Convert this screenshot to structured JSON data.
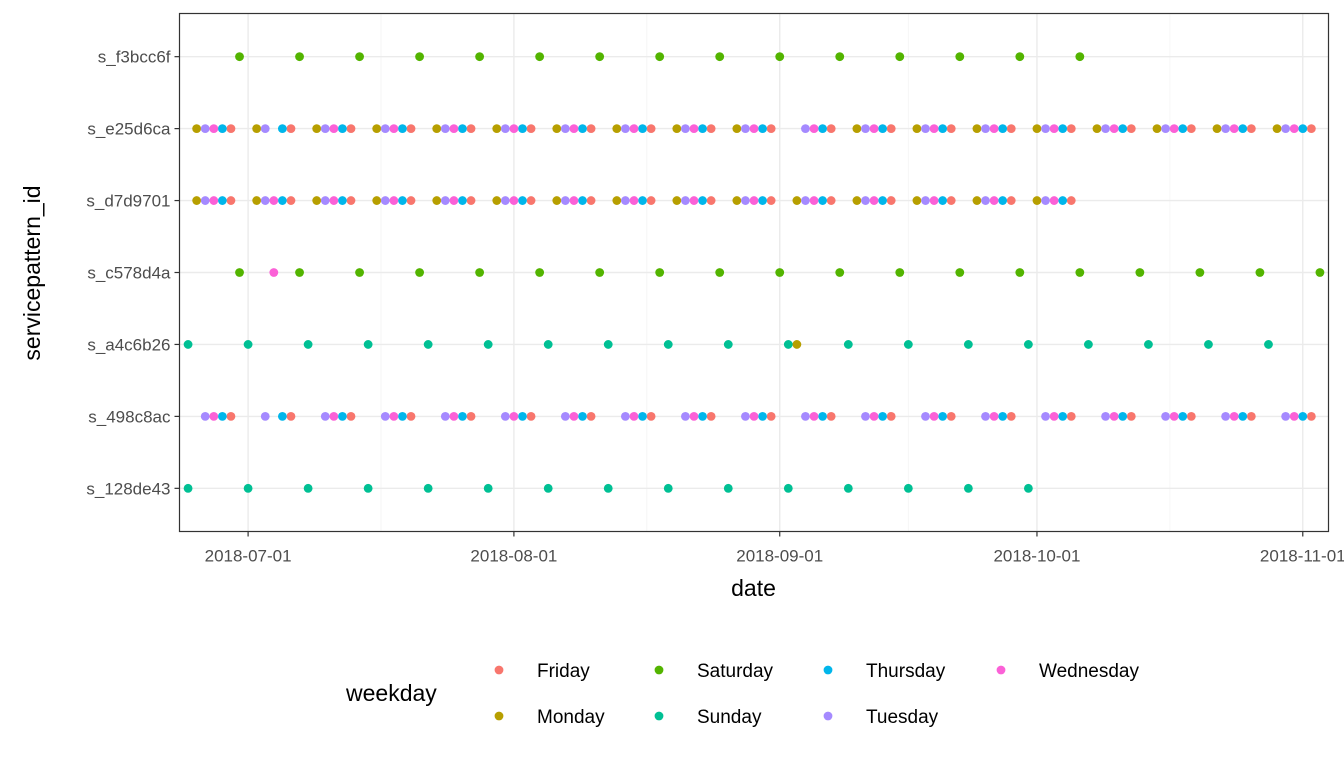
{
  "chart_data": {
    "type": "scatter",
    "xlabel": "date",
    "ylabel": "servicepattern_id",
    "x_ticks": [
      "2018-07-01",
      "2018-08-01",
      "2018-09-01",
      "2018-10-01",
      "2018-11-01"
    ],
    "xlim": [
      "2018-06-23",
      "2018-11-04"
    ],
    "categories": [
      "s_128de43",
      "s_498c8ac",
      "s_a4c6b26",
      "s_c578d4a",
      "s_d7d9701",
      "s_e25d6ca",
      "s_f3bcc6f"
    ],
    "grid": true,
    "legend": {
      "title": "weekday",
      "position": "bottom",
      "entries": [
        {
          "name": "Friday",
          "color": "#F8766D"
        },
        {
          "name": "Monday",
          "color": "#B79F00"
        },
        {
          "name": "Saturday",
          "color": "#53B400"
        },
        {
          "name": "Sunday",
          "color": "#00C094"
        },
        {
          "name": "Thursday",
          "color": "#00B6EB"
        },
        {
          "name": "Tuesday",
          "color": "#A58AFF"
        },
        {
          "name": "Wednesday",
          "color": "#FB61D7"
        }
      ]
    },
    "series": [
      {
        "name": "Friday",
        "color": "#F8766D",
        "points": [
          {
            "y": "s_e25d6ca",
            "x": [
              "2018-06-29",
              "2018-07-06",
              "2018-07-13",
              "2018-07-20",
              "2018-07-27",
              "2018-08-03",
              "2018-08-10",
              "2018-08-17",
              "2018-08-24",
              "2018-08-31",
              "2018-09-07",
              "2018-09-14",
              "2018-09-21",
              "2018-09-28",
              "2018-10-05",
              "2018-10-12",
              "2018-10-19",
              "2018-10-26",
              "2018-11-02"
            ]
          },
          {
            "y": "s_d7d9701",
            "x": [
              "2018-06-29",
              "2018-07-06",
              "2018-07-13",
              "2018-07-20",
              "2018-07-27",
              "2018-08-03",
              "2018-08-10",
              "2018-08-17",
              "2018-08-24",
              "2018-08-31",
              "2018-09-07",
              "2018-09-14",
              "2018-09-21",
              "2018-09-28",
              "2018-10-05"
            ]
          },
          {
            "y": "s_498c8ac",
            "x": [
              "2018-06-29",
              "2018-07-06",
              "2018-07-13",
              "2018-07-20",
              "2018-07-27",
              "2018-08-03",
              "2018-08-10",
              "2018-08-17",
              "2018-08-24",
              "2018-08-31",
              "2018-09-07",
              "2018-09-14",
              "2018-09-21",
              "2018-09-28",
              "2018-10-05",
              "2018-10-12",
              "2018-10-19",
              "2018-10-26",
              "2018-11-02"
            ]
          }
        ]
      },
      {
        "name": "Monday",
        "color": "#B79F00",
        "points": [
          {
            "y": "s_e25d6ca",
            "x": [
              "2018-06-25",
              "2018-07-02",
              "2018-07-09",
              "2018-07-16",
              "2018-07-23",
              "2018-07-30",
              "2018-08-06",
              "2018-08-13",
              "2018-08-20",
              "2018-08-27",
              "2018-09-10",
              "2018-09-17",
              "2018-09-24",
              "2018-10-01",
              "2018-10-08",
              "2018-10-15",
              "2018-10-22",
              "2018-10-29"
            ]
          },
          {
            "y": "s_d7d9701",
            "x": [
              "2018-06-25",
              "2018-07-02",
              "2018-07-09",
              "2018-07-16",
              "2018-07-23",
              "2018-07-30",
              "2018-08-06",
              "2018-08-13",
              "2018-08-20",
              "2018-08-27",
              "2018-09-03",
              "2018-09-10",
              "2018-09-17",
              "2018-09-24",
              "2018-10-01"
            ]
          },
          {
            "y": "s_a4c6b26",
            "x": [
              "2018-09-03"
            ]
          }
        ]
      },
      {
        "name": "Saturday",
        "color": "#53B400",
        "points": [
          {
            "y": "s_f3bcc6f",
            "x": [
              "2018-06-30",
              "2018-07-07",
              "2018-07-14",
              "2018-07-21",
              "2018-07-28",
              "2018-08-04",
              "2018-08-11",
              "2018-08-18",
              "2018-08-25",
              "2018-09-01",
              "2018-09-08",
              "2018-09-15",
              "2018-09-22",
              "2018-09-29",
              "2018-10-06"
            ]
          },
          {
            "y": "s_c578d4a",
            "x": [
              "2018-06-30",
              "2018-07-07",
              "2018-07-14",
              "2018-07-21",
              "2018-07-28",
              "2018-08-04",
              "2018-08-11",
              "2018-08-18",
              "2018-08-25",
              "2018-09-01",
              "2018-09-08",
              "2018-09-15",
              "2018-09-22",
              "2018-09-29",
              "2018-10-06",
              "2018-10-13",
              "2018-10-20",
              "2018-10-27",
              "2018-11-03"
            ]
          }
        ]
      },
      {
        "name": "Sunday",
        "color": "#00C094",
        "points": [
          {
            "y": "s_a4c6b26",
            "x": [
              "2018-06-24",
              "2018-07-01",
              "2018-07-08",
              "2018-07-15",
              "2018-07-22",
              "2018-07-29",
              "2018-08-05",
              "2018-08-12",
              "2018-08-19",
              "2018-08-26",
              "2018-09-02",
              "2018-09-09",
              "2018-09-16",
              "2018-09-23",
              "2018-09-30",
              "2018-10-07",
              "2018-10-14",
              "2018-10-21",
              "2018-10-28"
            ]
          },
          {
            "y": "s_128de43",
            "x": [
              "2018-06-24",
              "2018-07-01",
              "2018-07-08",
              "2018-07-15",
              "2018-07-22",
              "2018-07-29",
              "2018-08-05",
              "2018-08-12",
              "2018-08-19",
              "2018-08-26",
              "2018-09-02",
              "2018-09-09",
              "2018-09-16",
              "2018-09-23",
              "2018-09-30"
            ]
          }
        ]
      },
      {
        "name": "Thursday",
        "color": "#00B6EB",
        "points": [
          {
            "y": "s_e25d6ca",
            "x": [
              "2018-06-28",
              "2018-07-05",
              "2018-07-12",
              "2018-07-19",
              "2018-07-26",
              "2018-08-02",
              "2018-08-09",
              "2018-08-16",
              "2018-08-23",
              "2018-08-30",
              "2018-09-06",
              "2018-09-13",
              "2018-09-20",
              "2018-09-27",
              "2018-10-04",
              "2018-10-11",
              "2018-10-18",
              "2018-10-25",
              "2018-11-01"
            ]
          },
          {
            "y": "s_d7d9701",
            "x": [
              "2018-06-28",
              "2018-07-05",
              "2018-07-12",
              "2018-07-19",
              "2018-07-26",
              "2018-08-02",
              "2018-08-09",
              "2018-08-16",
              "2018-08-23",
              "2018-08-30",
              "2018-09-06",
              "2018-09-13",
              "2018-09-20",
              "2018-09-27",
              "2018-10-04"
            ]
          },
          {
            "y": "s_498c8ac",
            "x": [
              "2018-06-28",
              "2018-07-05",
              "2018-07-12",
              "2018-07-19",
              "2018-07-26",
              "2018-08-02",
              "2018-08-09",
              "2018-08-16",
              "2018-08-23",
              "2018-08-30",
              "2018-09-06",
              "2018-09-13",
              "2018-09-20",
              "2018-09-27",
              "2018-10-04",
              "2018-10-11",
              "2018-10-18",
              "2018-10-25",
              "2018-11-01"
            ]
          }
        ]
      },
      {
        "name": "Tuesday",
        "color": "#A58AFF",
        "points": [
          {
            "y": "s_e25d6ca",
            "x": [
              "2018-06-26",
              "2018-07-03",
              "2018-07-10",
              "2018-07-17",
              "2018-07-24",
              "2018-07-31",
              "2018-08-07",
              "2018-08-14",
              "2018-08-21",
              "2018-08-28",
              "2018-09-04",
              "2018-09-11",
              "2018-09-18",
              "2018-09-25",
              "2018-10-02",
              "2018-10-09",
              "2018-10-16",
              "2018-10-23",
              "2018-10-30"
            ]
          },
          {
            "y": "s_d7d9701",
            "x": [
              "2018-06-26",
              "2018-07-03",
              "2018-07-10",
              "2018-07-17",
              "2018-07-24",
              "2018-07-31",
              "2018-08-07",
              "2018-08-14",
              "2018-08-21",
              "2018-08-28",
              "2018-09-04",
              "2018-09-11",
              "2018-09-18",
              "2018-09-25",
              "2018-10-02"
            ]
          },
          {
            "y": "s_498c8ac",
            "x": [
              "2018-06-26",
              "2018-07-03",
              "2018-07-10",
              "2018-07-17",
              "2018-07-24",
              "2018-07-31",
              "2018-08-07",
              "2018-08-14",
              "2018-08-21",
              "2018-08-28",
              "2018-09-04",
              "2018-09-11",
              "2018-09-18",
              "2018-09-25",
              "2018-10-02",
              "2018-10-09",
              "2018-10-16",
              "2018-10-23",
              "2018-10-30"
            ]
          }
        ]
      },
      {
        "name": "Wednesday",
        "color": "#FB61D7",
        "points": [
          {
            "y": "s_e25d6ca",
            "x": [
              "2018-06-27",
              "2018-07-11",
              "2018-07-18",
              "2018-07-25",
              "2018-08-01",
              "2018-08-08",
              "2018-08-15",
              "2018-08-22",
              "2018-08-29",
              "2018-09-05",
              "2018-09-12",
              "2018-09-19",
              "2018-09-26",
              "2018-10-03",
              "2018-10-10",
              "2018-10-17",
              "2018-10-24",
              "2018-10-31"
            ]
          },
          {
            "y": "s_d7d9701",
            "x": [
              "2018-06-27",
              "2018-07-04",
              "2018-07-11",
              "2018-07-18",
              "2018-07-25",
              "2018-08-01",
              "2018-08-08",
              "2018-08-15",
              "2018-08-22",
              "2018-08-29",
              "2018-09-05",
              "2018-09-12",
              "2018-09-19",
              "2018-09-26",
              "2018-10-03"
            ]
          },
          {
            "y": "s_c578d4a",
            "x": [
              "2018-07-04"
            ]
          },
          {
            "y": "s_498c8ac",
            "x": [
              "2018-06-27",
              "2018-07-11",
              "2018-07-18",
              "2018-07-25",
              "2018-08-01",
              "2018-08-08",
              "2018-08-15",
              "2018-08-22",
              "2018-08-29",
              "2018-09-05",
              "2018-09-12",
              "2018-09-19",
              "2018-09-26",
              "2018-10-03",
              "2018-10-10",
              "2018-10-17",
              "2018-10-24",
              "2018-10-31"
            ]
          }
        ]
      }
    ]
  }
}
